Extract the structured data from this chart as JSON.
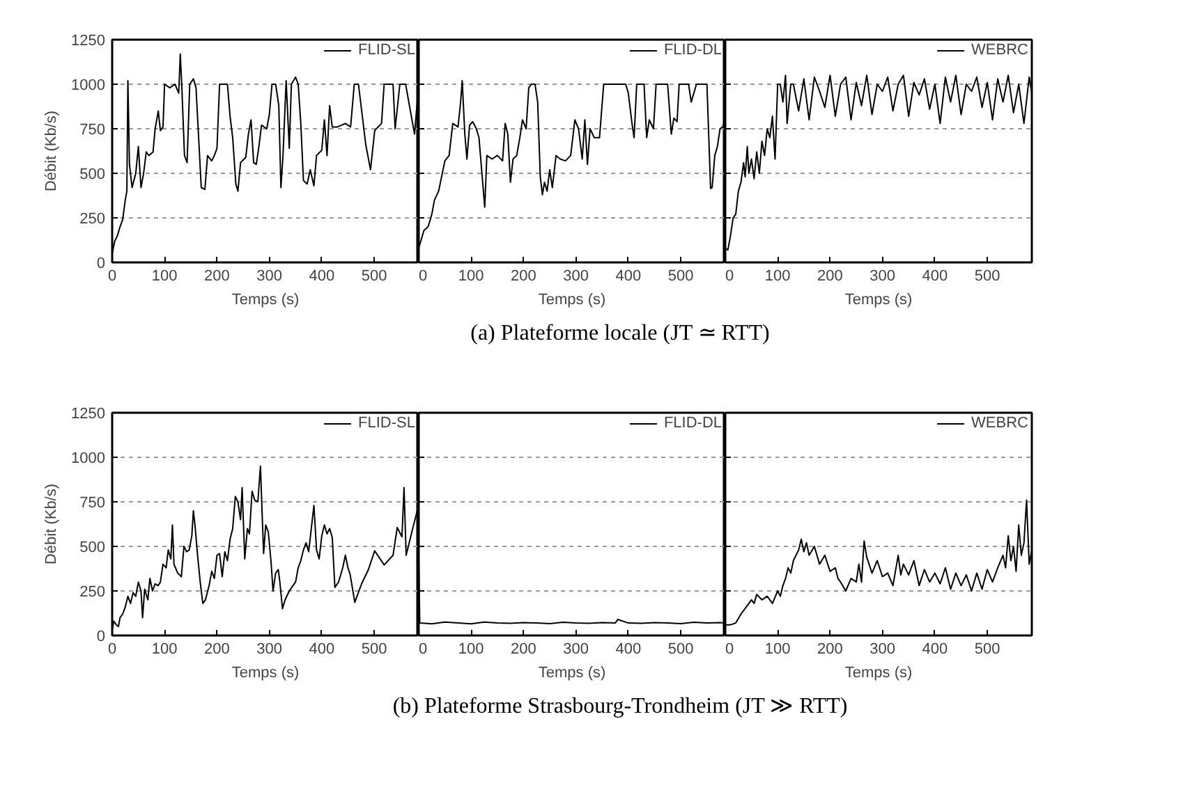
{
  "chart_data": [
    {
      "type": "line",
      "xlabel": "Temps (s)",
      "ylabel": "Débit (Kb/s)",
      "xlim": [
        0,
        585
      ],
      "ylim": [
        0,
        1250
      ],
      "xticks": [
        0,
        100,
        200,
        300,
        400,
        500
      ],
      "yticks": [
        0,
        250,
        500,
        750,
        1000,
        1250
      ],
      "grid": "y",
      "legend": "top right",
      "line_style": "solid",
      "annotations": [
        "(a) Plateforme locale (JT ≃ RTT)"
      ],
      "x": [
        0,
        5,
        10,
        15,
        20,
        25,
        28,
        30,
        33,
        38,
        45,
        50,
        55,
        60,
        65,
        70,
        78,
        82,
        88,
        92,
        97,
        100,
        110,
        120,
        127,
        130,
        133,
        138,
        143,
        148,
        155,
        160,
        165,
        170,
        177,
        182,
        190,
        195,
        200,
        205,
        212,
        220,
        225,
        230,
        236,
        240,
        245,
        255,
        260,
        265,
        270,
        275,
        280,
        285,
        295,
        300,
        305,
        312,
        318,
        322,
        326,
        332,
        338,
        342,
        350,
        355,
        360,
        365,
        372,
        378,
        385,
        390,
        400,
        405,
        410,
        415,
        420,
        430,
        445,
        455,
        462,
        470,
        484,
        493,
        501,
        514,
        519,
        536,
        540,
        549,
        560,
        577,
        585
      ],
      "series": [
        {
          "name": "FLID-SL",
          "color": "#000000",
          "values": [
            50,
            120,
            150,
            200,
            240,
            350,
            400,
            1020,
            550,
            420,
            500,
            650,
            420,
            500,
            620,
            600,
            620,
            750,
            850,
            740,
            760,
            1000,
            980,
            1000,
            950,
            1170,
            980,
            600,
            560,
            1000,
            1030,
            980,
            700,
            420,
            410,
            600,
            570,
            600,
            640,
            1000,
            1000,
            1000,
            820,
            700,
            440,
            400,
            560,
            590,
            720,
            800,
            560,
            550,
            650,
            770,
            750,
            830,
            1000,
            1000,
            880,
            420,
            600,
            1020,
            640,
            1000,
            1040,
            1000,
            780,
            460,
            440,
            520,
            430,
            600,
            630,
            800,
            600,
            880,
            760,
            760,
            780,
            760,
            1000,
            1000,
            660,
            520,
            740,
            780,
            1000,
            1000,
            750,
            1000,
            1000,
            720,
            1000
          ]
        }
      ]
    },
    {
      "type": "line",
      "xlabel": "Temps (s)",
      "xlim": [
        0,
        585
      ],
      "ylim": [
        0,
        1250
      ],
      "xticks": [
        0,
        100,
        200,
        300,
        400,
        500
      ],
      "yticks": [
        0,
        250,
        500,
        750,
        1000,
        1250
      ],
      "grid": "y",
      "legend": "top right",
      "line_style": "solid",
      "tick_labels": "x",
      "x": [
        0,
        5,
        10,
        18,
        25,
        30,
        38,
        45,
        50,
        58,
        65,
        75,
        80,
        83,
        88,
        92,
        97,
        103,
        110,
        115,
        126,
        130,
        140,
        150,
        160,
        165,
        170,
        175,
        180,
        187,
        193,
        198,
        205,
        210,
        215,
        222,
        227,
        232,
        236,
        240,
        245,
        250,
        255,
        262,
        270,
        280,
        290,
        298,
        305,
        312,
        317,
        322,
        327,
        335,
        345,
        353,
        360,
        370,
        385,
        395,
        400,
        407,
        411,
        416,
        430,
        435,
        440,
        448,
        453,
        465,
        475,
        482,
        487,
        493,
        497,
        505,
        515,
        520,
        530,
        550,
        557,
        560,
        565,
        570,
        575,
        580,
        585
      ],
      "series": [
        {
          "name": "FLID-DL",
          "color": "#000000",
          "values": [
            80,
            130,
            180,
            200,
            270,
            350,
            400,
            500,
            570,
            600,
            780,
            760,
            900,
            1020,
            720,
            580,
            770,
            790,
            750,
            700,
            310,
            600,
            580,
            600,
            570,
            780,
            720,
            450,
            580,
            600,
            700,
            800,
            750,
            980,
            1000,
            1000,
            900,
            480,
            380,
            450,
            400,
            520,
            420,
            600,
            580,
            570,
            600,
            800,
            750,
            580,
            800,
            550,
            750,
            700,
            700,
            1000,
            1000,
            1000,
            1000,
            1000,
            950,
            780,
            700,
            1000,
            1000,
            700,
            800,
            750,
            1000,
            1000,
            1000,
            720,
            810,
            790,
            1000,
            1000,
            1000,
            900,
            1000,
            1000,
            415,
            420,
            600,
            650,
            750,
            760,
            800
          ]
        }
      ]
    },
    {
      "type": "line",
      "xlabel": "Temps (s)",
      "xlim": [
        0,
        585
      ],
      "ylim": [
        0,
        1250
      ],
      "xticks": [
        0,
        100,
        200,
        300,
        400,
        500
      ],
      "yticks": [
        0,
        250,
        500,
        750,
        1000,
        1250
      ],
      "grid": "y",
      "legend": "top right",
      "line_style": "solid",
      "tick_labels": "x",
      "x": [
        0,
        5,
        10,
        15,
        20,
        25,
        30,
        35,
        38,
        42,
        45,
        50,
        55,
        60,
        65,
        70,
        75,
        80,
        85,
        90,
        95,
        100,
        105,
        110,
        115,
        118,
        125,
        130,
        140,
        150,
        160,
        170,
        180,
        190,
        200,
        210,
        220,
        230,
        240,
        250,
        260,
        270,
        280,
        290,
        300,
        310,
        320,
        330,
        340,
        350,
        360,
        370,
        380,
        390,
        400,
        410,
        420,
        430,
        440,
        450,
        460,
        470,
        480,
        490,
        500,
        510,
        520,
        530,
        540,
        550,
        560,
        570,
        580,
        585
      ],
      "series": [
        {
          "name": "WEBRC",
          "color": "#000000",
          "values": [
            80,
            70,
            150,
            250,
            270,
            400,
            450,
            560,
            480,
            650,
            500,
            580,
            470,
            620,
            500,
            680,
            600,
            750,
            700,
            820,
            580,
            1000,
            1000,
            900,
            1050,
            780,
            1000,
            1000,
            850,
            1030,
            800,
            1040,
            960,
            870,
            1050,
            820,
            1000,
            1040,
            800,
            1010,
            880,
            1050,
            830,
            1000,
            960,
            1040,
            850,
            1000,
            1050,
            820,
            1010,
            940,
            1030,
            860,
            1000,
            780,
            1040,
            900,
            1050,
            830,
            1000,
            960,
            1040,
            870,
            1010,
            800,
            1030,
            900,
            1050,
            840,
            1000,
            780,
            1040,
            950
          ]
        }
      ]
    },
    {
      "type": "line",
      "xlabel": "Temps (s)",
      "ylabel": "Débit (Kb/s)",
      "xlim": [
        0,
        585
      ],
      "ylim": [
        0,
        1250
      ],
      "xticks": [
        0,
        100,
        200,
        300,
        400,
        500
      ],
      "yticks": [
        0,
        250,
        500,
        750,
        1000,
        1250
      ],
      "grid": "y",
      "legend": "top right",
      "line_style": "solid",
      "annotations": [
        "(b) Plateforme Strasbourg-Trondheim (JT ≫ RTT)"
      ],
      "x": [
        0,
        3,
        8,
        12,
        15,
        20,
        25,
        30,
        35,
        40,
        45,
        50,
        55,
        58,
        62,
        68,
        72,
        77,
        82,
        88,
        92,
        97,
        103,
        107,
        112,
        115,
        118,
        125,
        132,
        137,
        142,
        147,
        152,
        155,
        158,
        163,
        168,
        173,
        178,
        185,
        190,
        195,
        200,
        205,
        210,
        215,
        220,
        225,
        230,
        235,
        240,
        245,
        248,
        253,
        258,
        262,
        267,
        272,
        278,
        283,
        286,
        289,
        293,
        298,
        303,
        307,
        312,
        317,
        320,
        325,
        330,
        338,
        345,
        350,
        355,
        360,
        365,
        370,
        375,
        380,
        385,
        390,
        395,
        400,
        405,
        410,
        415,
        420,
        425,
        432,
        440,
        445,
        450,
        454,
        463,
        476,
        489,
        501,
        519,
        536,
        544,
        553,
        557,
        561,
        574,
        583
      ],
      "series": [
        {
          "name": "FLID-SL",
          "color": "#000000",
          "values": [
            30,
            80,
            60,
            50,
            100,
            120,
            160,
            220,
            180,
            240,
            220,
            300,
            250,
            100,
            260,
            200,
            320,
            250,
            290,
            280,
            300,
            400,
            380,
            480,
            430,
            620,
            400,
            350,
            330,
            500,
            470,
            480,
            560,
            700,
            620,
            450,
            300,
            180,
            200,
            280,
            360,
            320,
            450,
            460,
            330,
            470,
            420,
            540,
            600,
            780,
            750,
            650,
            830,
            430,
            600,
            570,
            810,
            760,
            750,
            950,
            700,
            460,
            620,
            580,
            420,
            250,
            350,
            370,
            300,
            150,
            200,
            250,
            280,
            300,
            380,
            420,
            480,
            520,
            470,
            600,
            730,
            480,
            430,
            560,
            620,
            570,
            600,
            550,
            270,
            300,
            380,
            450,
            380,
            344,
            186,
            290,
            370,
            475,
            396,
            450,
            606,
            554,
            830,
            450,
            606,
            710
          ]
        }
      ]
    },
    {
      "type": "line",
      "xlabel": "Temps (s)",
      "xlim": [
        0,
        585
      ],
      "ylim": [
        0,
        1250
      ],
      "xticks": [
        0,
        100,
        200,
        300,
        400,
        500
      ],
      "yticks": [
        0,
        250,
        500,
        750,
        1000,
        1250
      ],
      "grid": "y",
      "legend": "top right",
      "line_style": "solid",
      "tick_labels": "x",
      "x": [
        0,
        2,
        25,
        50,
        75,
        100,
        125,
        150,
        175,
        200,
        225,
        250,
        275,
        300,
        325,
        350,
        375,
        380,
        400,
        425,
        450,
        475,
        500,
        525,
        550,
        575,
        585
      ],
      "series": [
        {
          "name": "FLID-DL",
          "color": "#000000",
          "values": [
            450,
            70,
            65,
            75,
            70,
            65,
            75,
            70,
            68,
            72,
            70,
            66,
            74,
            70,
            68,
            72,
            70,
            90,
            70,
            68,
            72,
            70,
            66,
            74,
            70,
            72,
            70
          ]
        }
      ]
    },
    {
      "type": "line",
      "xlabel": "Temps (s)",
      "xlim": [
        0,
        585
      ],
      "ylim": [
        0,
        1250
      ],
      "xticks": [
        0,
        100,
        200,
        300,
        400,
        500
      ],
      "yticks": [
        0,
        250,
        500,
        750,
        1000,
        1250
      ],
      "grid": "y",
      "legend": "top right",
      "line_style": "solid",
      "tick_labels": "x",
      "x": [
        0,
        10,
        20,
        30,
        40,
        50,
        55,
        60,
        70,
        80,
        90,
        100,
        105,
        110,
        115,
        120,
        125,
        130,
        135,
        140,
        145,
        150,
        155,
        160,
        170,
        180,
        190,
        200,
        210,
        215,
        220,
        230,
        240,
        250,
        255,
        260,
        265,
        270,
        280,
        290,
        300,
        310,
        320,
        330,
        335,
        340,
        350,
        360,
        370,
        380,
        390,
        400,
        410,
        420,
        430,
        440,
        450,
        460,
        470,
        480,
        490,
        500,
        510,
        520,
        530,
        535,
        540,
        545,
        550,
        555,
        560,
        565,
        570,
        575,
        580,
        585
      ],
      "series": [
        {
          "name": "WEBRC",
          "color": "#000000",
          "values": [
            60,
            60,
            70,
            120,
            160,
            200,
            180,
            230,
            200,
            220,
            180,
            250,
            220,
            280,
            320,
            380,
            350,
            420,
            450,
            480,
            540,
            470,
            520,
            450,
            500,
            400,
            450,
            360,
            380,
            320,
            300,
            250,
            320,
            300,
            400,
            300,
            530,
            440,
            350,
            420,
            330,
            350,
            280,
            450,
            340,
            400,
            340,
            420,
            280,
            370,
            300,
            350,
            290,
            380,
            260,
            350,
            280,
            340,
            250,
            350,
            260,
            370,
            300,
            380,
            450,
            380,
            560,
            420,
            500,
            360,
            620,
            450,
            520,
            760,
            400,
            480
          ]
        }
      ]
    }
  ]
}
